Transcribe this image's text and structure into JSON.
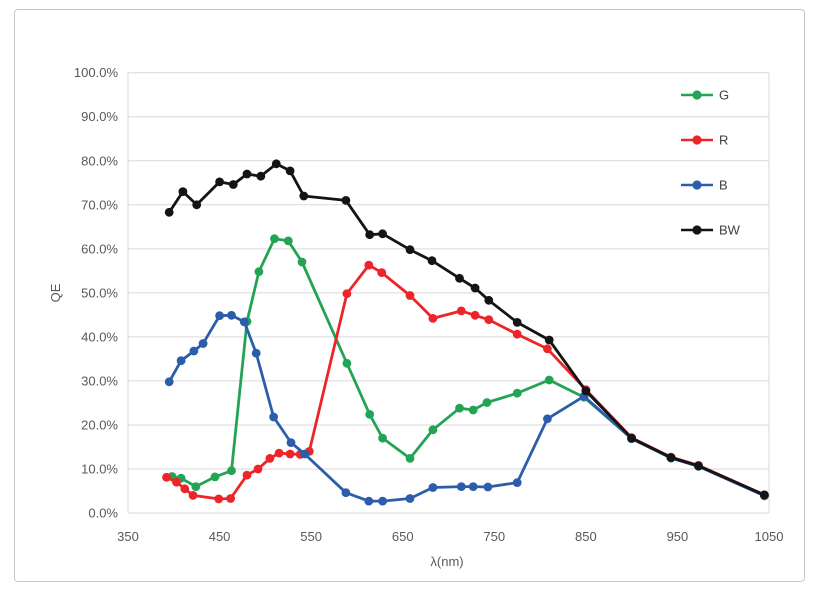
{
  "chart_data": {
    "type": "line",
    "title": "",
    "xlabel": "λ(nm)",
    "ylabel": "QE",
    "xlim": [
      350,
      1050
    ],
    "ylim": [
      0,
      100
    ],
    "x_ticks": [
      350,
      450,
      550,
      650,
      750,
      850,
      950,
      1050
    ],
    "y_ticks": [
      0,
      10,
      20,
      30,
      40,
      50,
      60,
      70,
      80,
      90,
      100
    ],
    "y_tick_labels": [
      "0.0%",
      "10.0%",
      "20.0%",
      "30.0%",
      "40.0%",
      "50.0%",
      "60.0%",
      "70.0%",
      "80.0%",
      "90.0%",
      "100.0%"
    ],
    "grid": "horizontal",
    "legend_position": "right",
    "series": [
      {
        "name": "G",
        "color": "#23A455",
        "points": [
          [
            398,
            8.3
          ],
          [
            408,
            7.9
          ],
          [
            424,
            6.0
          ],
          [
            445,
            8.2
          ],
          [
            463,
            9.6
          ],
          [
            480,
            43.5
          ],
          [
            493,
            54.8
          ],
          [
            510,
            62.3
          ],
          [
            525,
            61.8
          ],
          [
            540,
            57.0
          ],
          [
            589,
            34.0
          ],
          [
            614,
            22.4
          ],
          [
            628,
            17.0
          ],
          [
            658,
            12.4
          ],
          [
            683,
            18.9
          ],
          [
            712,
            23.8
          ],
          [
            727,
            23.4
          ],
          [
            742,
            25.1
          ],
          [
            775,
            27.2
          ],
          [
            810,
            30.2
          ],
          [
            848,
            26.3
          ],
          [
            900,
            16.9
          ],
          [
            943,
            12.5
          ],
          [
            973,
            10.6
          ],
          [
            1045,
            4.0
          ]
        ]
      },
      {
        "name": "R",
        "color": "#ED2428",
        "points": [
          [
            392,
            8.1
          ],
          [
            403,
            7.0
          ],
          [
            412,
            5.5
          ],
          [
            421,
            4.0
          ],
          [
            449,
            3.2
          ],
          [
            462,
            3.3
          ],
          [
            480,
            8.6
          ],
          [
            492,
            10.0
          ],
          [
            505,
            12.4
          ],
          [
            515,
            13.6
          ],
          [
            527,
            13.4
          ],
          [
            538,
            13.3
          ],
          [
            548,
            14.0
          ],
          [
            589,
            49.8
          ],
          [
            613,
            56.3
          ],
          [
            627,
            54.6
          ],
          [
            658,
            49.4
          ],
          [
            683,
            44.2
          ],
          [
            714,
            45.9
          ],
          [
            729,
            44.9
          ],
          [
            744,
            43.9
          ],
          [
            775,
            40.6
          ],
          [
            808,
            37.3
          ],
          [
            850,
            28.0
          ],
          [
            900,
            17.1
          ],
          [
            943,
            12.7
          ],
          [
            973,
            10.8
          ],
          [
            1045,
            4.1
          ]
        ]
      },
      {
        "name": "B",
        "color": "#2B5DAB",
        "points": [
          [
            395,
            29.8
          ],
          [
            408,
            34.6
          ],
          [
            422,
            36.8
          ],
          [
            432,
            38.5
          ],
          [
            450,
            44.8
          ],
          [
            463,
            44.9
          ],
          [
            477,
            43.4
          ],
          [
            490,
            36.3
          ],
          [
            509,
            21.8
          ],
          [
            528,
            16.0
          ],
          [
            543,
            13.4
          ],
          [
            588,
            4.6
          ],
          [
            613,
            2.7
          ],
          [
            628,
            2.7
          ],
          [
            658,
            3.3
          ],
          [
            683,
            5.8
          ],
          [
            714,
            6.0
          ],
          [
            727,
            6.0
          ],
          [
            743,
            5.9
          ],
          [
            775,
            6.9
          ],
          [
            808,
            21.4
          ],
          [
            848,
            26.5
          ],
          [
            900,
            16.9
          ],
          [
            943,
            12.5
          ],
          [
            973,
            10.6
          ],
          [
            1045,
            3.9
          ]
        ]
      },
      {
        "name": "BW",
        "color": "#141414",
        "points": [
          [
            395,
            68.3
          ],
          [
            410,
            73.0
          ],
          [
            425,
            70.0
          ],
          [
            450,
            75.2
          ],
          [
            465,
            74.6
          ],
          [
            480,
            77.0
          ],
          [
            495,
            76.5
          ],
          [
            512,
            79.3
          ],
          [
            527,
            77.7
          ],
          [
            542,
            72.0
          ],
          [
            588,
            71.0
          ],
          [
            614,
            63.2
          ],
          [
            628,
            63.4
          ],
          [
            658,
            59.8
          ],
          [
            682,
            57.3
          ],
          [
            712,
            53.3
          ],
          [
            729,
            51.1
          ],
          [
            744,
            48.3
          ],
          [
            775,
            43.3
          ],
          [
            810,
            39.3
          ],
          [
            850,
            27.7
          ],
          [
            900,
            17.0
          ],
          [
            943,
            12.6
          ],
          [
            973,
            10.7
          ],
          [
            1045,
            4.1
          ]
        ]
      }
    ]
  },
  "colors": {
    "gridline": "#D9D9D9",
    "tick_text": "#595959",
    "legend_text": "#404040",
    "frame_border": "#C9C7C5",
    "background": "#FFFFFF"
  }
}
